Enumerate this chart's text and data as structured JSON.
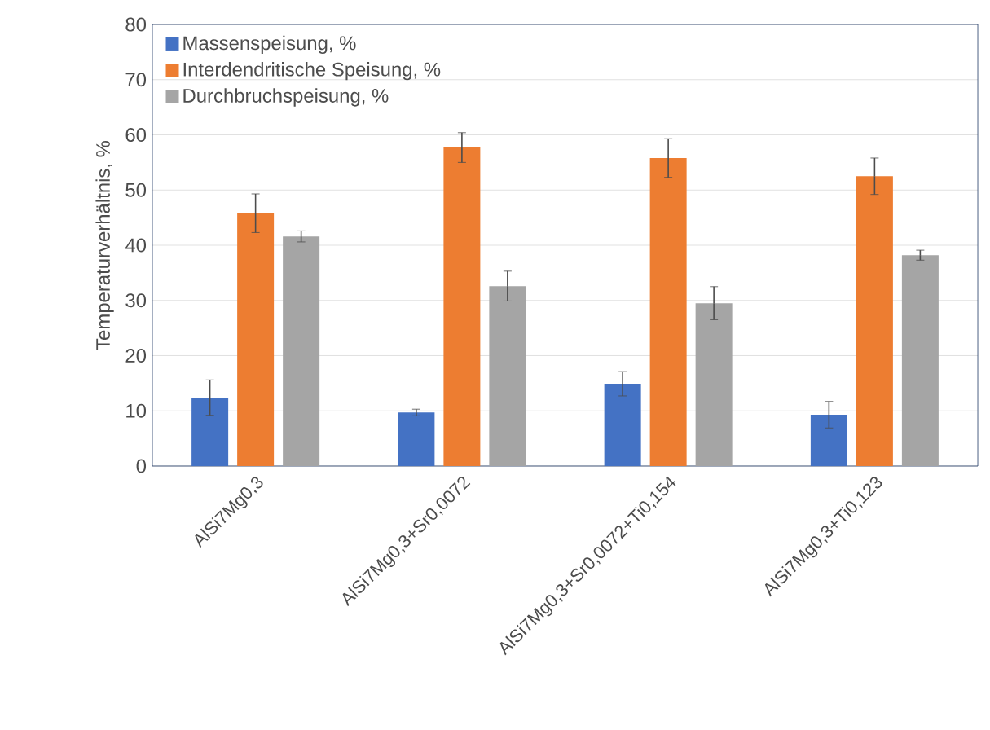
{
  "chart_data": {
    "type": "bar",
    "ylabel": "Temperaturverhältnis, %",
    "categories": [
      "AlSi7Mg0,3",
      "AlSi7Mg0,3+Sr0,0072",
      "AlSi7Mg0,3+Sr0,0072+Ti0,154",
      "AlSi7Mg0,3+Ti0,123"
    ],
    "series": [
      {
        "name": "Massenspeisung, %",
        "color": "#4472c4",
        "values": [
          12.4,
          9.7,
          14.9,
          9.3
        ],
        "errors": [
          3.2,
          0.6,
          2.2,
          2.4
        ]
      },
      {
        "name": "Interdendritische Speisung, %",
        "color": "#ed7d31",
        "values": [
          45.8,
          57.7,
          55.8,
          52.5
        ],
        "errors": [
          3.5,
          2.7,
          3.5,
          3.3
        ]
      },
      {
        "name": "Durchbruchspeisung, %",
        "color": "#a5a5a5",
        "values": [
          41.6,
          32.6,
          29.5,
          38.2
        ],
        "errors": [
          1.0,
          2.7,
          3.0,
          0.9
        ]
      }
    ],
    "ylim": [
      0,
      80
    ],
    "yticks": [
      0,
      10,
      20,
      30,
      40,
      50,
      60,
      70,
      80
    ],
    "grid": "y",
    "legend": "top left"
  }
}
